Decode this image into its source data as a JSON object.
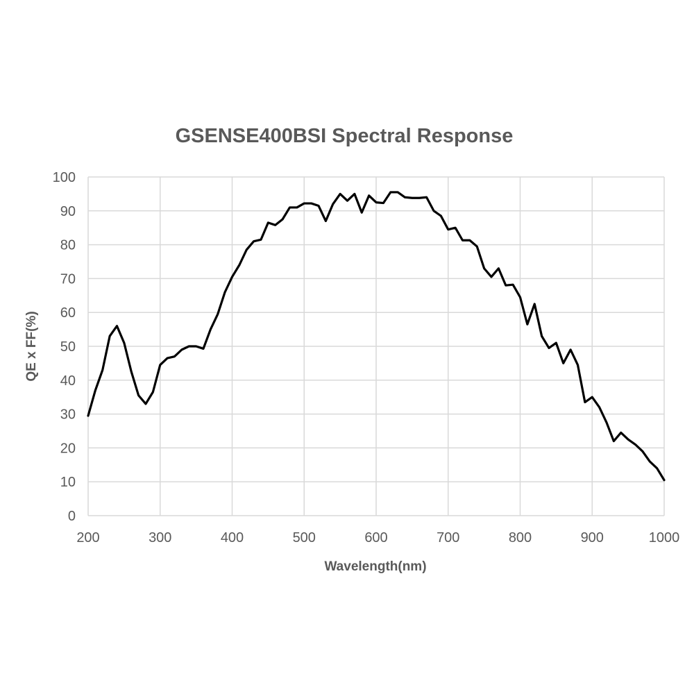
{
  "chart_data": {
    "type": "line",
    "title": "GSENSE400BSI Spectral Response",
    "xlabel": "Wavelength(nm)",
    "ylabel": "QE x FF(%)",
    "xlim": [
      200,
      1000
    ],
    "ylim": [
      0,
      100
    ],
    "xticks": [
      200,
      300,
      400,
      500,
      600,
      700,
      800,
      900,
      1000
    ],
    "yticks": [
      0,
      10,
      20,
      30,
      40,
      50,
      60,
      70,
      80,
      90,
      100
    ],
    "grid": true,
    "line_color": "#000000",
    "grid_color": "#d9d9d9",
    "text_color": "#595959",
    "series": [
      {
        "x": [
          200,
          210,
          220,
          230,
          240,
          250,
          260,
          270,
          280,
          290,
          300,
          310,
          320,
          330,
          340,
          350,
          360,
          370,
          380,
          390,
          400,
          410,
          420,
          430,
          440,
          450,
          460,
          470,
          480,
          490,
          500,
          510,
          520,
          530,
          540,
          550,
          560,
          570,
          580,
          590,
          600,
          610,
          620,
          630,
          640,
          650,
          660,
          670,
          680,
          690,
          700,
          710,
          720,
          730,
          740,
          750,
          760,
          770,
          780,
          790,
          800,
          810,
          820,
          830,
          840,
          850,
          860,
          870,
          880,
          890,
          900,
          910,
          920,
          930,
          940,
          950,
          960,
          970,
          980,
          990,
          1000
        ],
        "y": [
          29.5,
          37,
          43,
          53,
          56,
          51,
          42.5,
          35.5,
          33,
          36.5,
          44.5,
          46.5,
          47,
          49,
          50,
          50,
          49.3,
          55,
          59.5,
          66,
          70.5,
          74,
          78.5,
          81,
          81.5,
          86.5,
          85.8,
          87.5,
          91,
          91,
          92.2,
          92.2,
          91.5,
          87,
          92,
          95,
          93,
          95,
          89.5,
          94.5,
          92.5,
          92.3,
          95.5,
          95.5,
          94,
          93.8,
          93.8,
          94,
          90,
          88.5,
          84.5,
          85,
          81.3,
          81.3,
          79.5,
          73,
          70.5,
          73,
          68,
          68.2,
          64.5,
          56.5,
          62.5,
          53,
          49.5,
          51,
          45,
          49,
          44.5,
          33.5,
          35,
          32,
          27.5,
          22,
          24.5,
          22.5,
          21,
          19,
          16,
          14,
          10.5
        ]
      }
    ]
  }
}
